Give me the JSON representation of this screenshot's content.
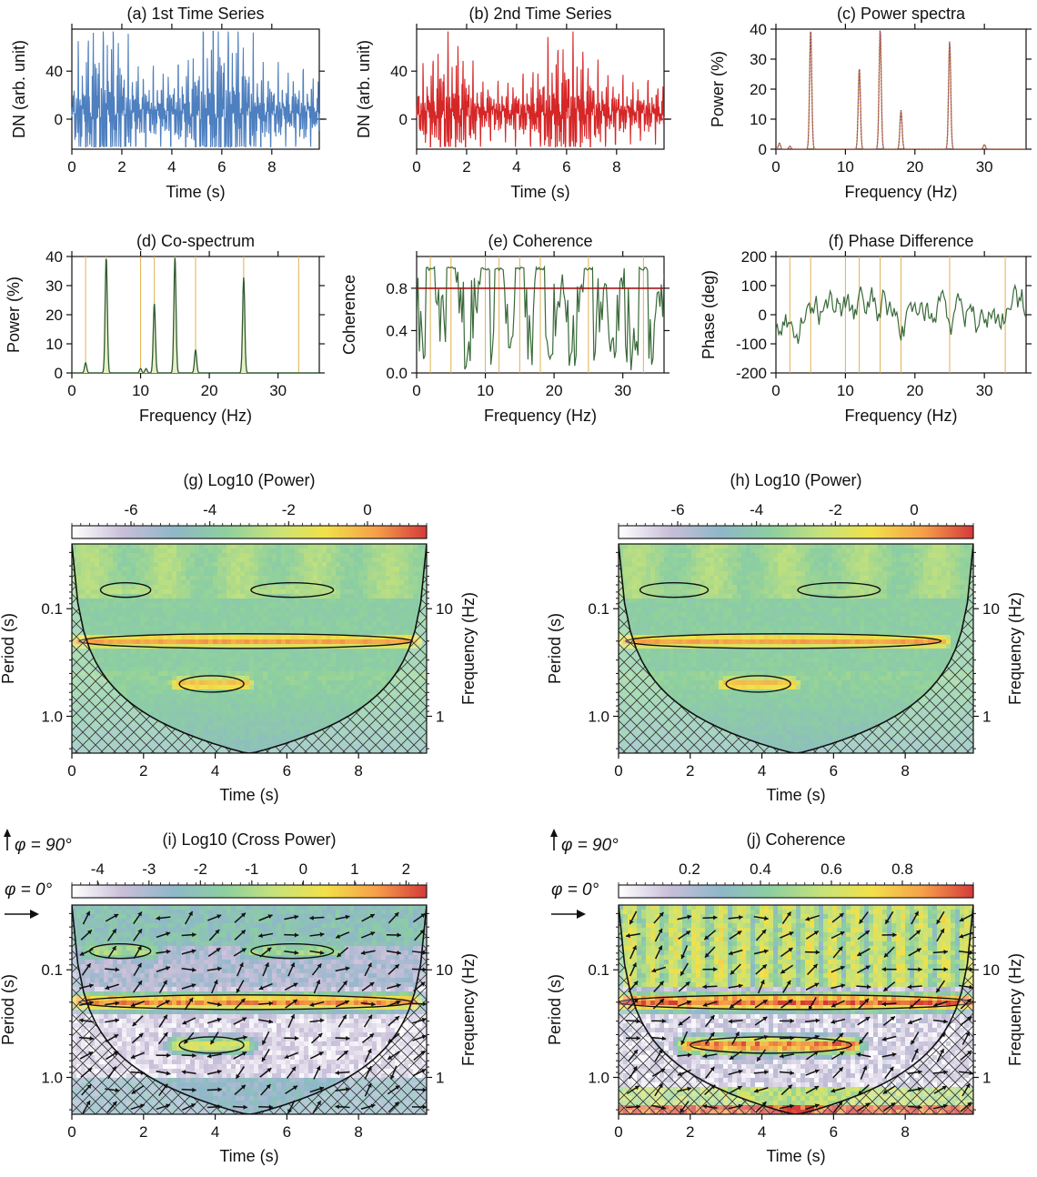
{
  "colors": {
    "series1": "#4e7fbf",
    "series2": "#d62728",
    "power1": "#8a4a8a",
    "power2": "#d08a2a",
    "cospec": "#2f5a2f",
    "cospec_fill": "#e8f0c8",
    "coherence_line": "#3a6a3a",
    "threshold": "#a01818",
    "marker": "#e0b050",
    "colormap": [
      "#ffffff",
      "#c9bfd9",
      "#8fb7c9",
      "#8ccfa0",
      "#c6e27a",
      "#f1e14a",
      "#f6a04a",
      "#d43a3a"
    ]
  },
  "chart_data": [
    {
      "id": "a",
      "type": "line",
      "title": "(a) 1st Time Series",
      "xlabel": "Time (s)",
      "ylabel": "DN (arb. unit)",
      "xlim": [
        0,
        9.9
      ],
      "ylim": [
        -25,
        75
      ],
      "xticks": [
        "0",
        "2",
        "4",
        "6",
        "8"
      ],
      "yticks": [
        "0",
        "40"
      ],
      "signal": {
        "components_hz": [
          5,
          12,
          15,
          18,
          25
        ],
        "duration_s": 9.9,
        "peak": 72
      }
    },
    {
      "id": "b",
      "type": "line",
      "title": "(b) 2nd Time Series",
      "xlabel": "Time (s)",
      "ylabel": "DN (arb. unit)",
      "xlim": [
        0,
        9.9
      ],
      "ylim": [
        -25,
        75
      ],
      "xticks": [
        "0",
        "2",
        "4",
        "6",
        "8"
      ],
      "yticks": [
        "0",
        "40"
      ],
      "signal": {
        "components_hz": [
          5,
          12,
          15,
          18,
          25
        ],
        "duration_s": 9.9,
        "peak": 52
      }
    },
    {
      "id": "c",
      "type": "line",
      "title": "(c) Power spectra",
      "xlabel": "Frequency (Hz)",
      "ylabel": "Power (%)",
      "xlim": [
        0,
        36
      ],
      "ylim": [
        0,
        40
      ],
      "xticks": [
        "0",
        "10",
        "20",
        "30"
      ],
      "yticks": [
        "0",
        "10",
        "20",
        "30",
        "40"
      ],
      "peaks": [
        {
          "x": 0.5,
          "y": 2
        },
        {
          "x": 2,
          "y": 1
        },
        {
          "x": 5,
          "y": 40
        },
        {
          "x": 12,
          "y": 27
        },
        {
          "x": 15,
          "y": 40
        },
        {
          "x": 18,
          "y": 13
        },
        {
          "x": 25,
          "y": 36
        },
        {
          "x": 30,
          "y": 1.5
        }
      ]
    },
    {
      "id": "d",
      "type": "area",
      "title": "(d) Co-spectrum",
      "xlabel": "Frequency (Hz)",
      "ylabel": "Power (%)",
      "xlim": [
        0,
        36
      ],
      "ylim": [
        0,
        40
      ],
      "xticks": [
        "0",
        "10",
        "20",
        "30"
      ],
      "yticks": [
        "0",
        "10",
        "20",
        "30",
        "40"
      ],
      "peaks": [
        {
          "x": 2,
          "y": 3.5
        },
        {
          "x": 5,
          "y": 40
        },
        {
          "x": 10,
          "y": 1.5
        },
        {
          "x": 10.8,
          "y": 1.5
        },
        {
          "x": 12,
          "y": 24
        },
        {
          "x": 15,
          "y": 40
        },
        {
          "x": 18,
          "y": 8
        },
        {
          "x": 25,
          "y": 33
        }
      ],
      "markers_hz": [
        2,
        5,
        10,
        12,
        15,
        18,
        25,
        33
      ]
    },
    {
      "id": "e",
      "type": "line",
      "title": "(e) Coherence",
      "xlabel": "Frequency (Hz)",
      "ylabel": "Coherence",
      "xlim": [
        0,
        36
      ],
      "ylim": [
        0,
        1.1
      ],
      "xticks": [
        "0",
        "10",
        "20",
        "30"
      ],
      "yticks": [
        "0.0",
        "0.4",
        "0.8"
      ],
      "threshold": 0.8,
      "markers_hz": [
        2,
        5,
        10,
        12,
        15,
        18,
        25,
        33
      ]
    },
    {
      "id": "f",
      "type": "line",
      "title": "(f) Phase Difference",
      "xlabel": "Frequency (Hz)",
      "ylabel": "Phase (deg)",
      "xlim": [
        0,
        36
      ],
      "ylim": [
        -200,
        200
      ],
      "xticks": [
        "0",
        "10",
        "20",
        "30"
      ],
      "yticks": [
        "-200",
        "-100",
        "0",
        "100",
        "200"
      ],
      "markers_hz": [
        2,
        5,
        10,
        12,
        15,
        18,
        25,
        33
      ]
    },
    {
      "id": "g",
      "type": "heatmap",
      "title": "(g) Log10 (Power)",
      "xlabel": "Time (s)",
      "ylabel": "Period (s)",
      "y2label": "Frequency (Hz)",
      "xlim": [
        0,
        9.9
      ],
      "period_range": [
        0.025,
        2.2
      ],
      "xticks": [
        "0",
        "2",
        "4",
        "6",
        "8"
      ],
      "yticks": [
        "0.1",
        "1.0"
      ],
      "y2ticks": [
        "10",
        "1"
      ],
      "colorbar": {
        "ticks": [
          "-6",
          "-4",
          "-2",
          "0"
        ],
        "range": [
          -7.5,
          1.5
        ]
      },
      "bands": [
        {
          "period": 0.2,
          "t0": 0.2,
          "t1": 9.5,
          "level": 0.85
        },
        {
          "period": 0.5,
          "t0": 3.0,
          "t1": 4.8,
          "level": 0.8
        },
        {
          "period": 0.067,
          "t0": 0.8,
          "t1": 2.2,
          "level": 0.55
        },
        {
          "period": 0.067,
          "t0": 5.0,
          "t1": 7.3,
          "level": 0.55
        }
      ]
    },
    {
      "id": "h",
      "type": "heatmap",
      "title": "(h) Log10 (Power)",
      "xlabel": "Time (s)",
      "ylabel": "Period (s)",
      "y2label": "Frequency (Hz)",
      "xlim": [
        0,
        9.9
      ],
      "period_range": [
        0.025,
        2.2
      ],
      "xticks": [
        "0",
        "2",
        "4",
        "6",
        "8"
      ],
      "yticks": [
        "0.1",
        "1.0"
      ],
      "y2ticks": [
        "10",
        "1"
      ],
      "colorbar": {
        "ticks": [
          "-6",
          "-4",
          "-2",
          "0"
        ],
        "range": [
          -7.5,
          1.5
        ]
      },
      "bands": [
        {
          "period": 0.2,
          "t0": 0.2,
          "t1": 9.0,
          "level": 0.85
        },
        {
          "period": 0.5,
          "t0": 3.0,
          "t1": 4.8,
          "level": 0.8
        },
        {
          "period": 0.067,
          "t0": 0.6,
          "t1": 2.5,
          "level": 0.5
        },
        {
          "period": 0.067,
          "t0": 5.0,
          "t1": 7.3,
          "level": 0.5
        }
      ]
    },
    {
      "id": "i",
      "type": "heatmap",
      "title": "(i) Log10 (Cross Power)",
      "xlabel": "Time (s)",
      "ylabel": "Period (s)",
      "y2label": "Frequency (Hz)",
      "xlim": [
        0,
        9.9
      ],
      "period_range": [
        0.025,
        2.2
      ],
      "xticks": [
        "0",
        "2",
        "4",
        "6",
        "8"
      ],
      "yticks": [
        "0.1",
        "1.0"
      ],
      "y2ticks": [
        "10",
        "1"
      ],
      "colorbar": {
        "ticks": [
          "-4",
          "-3",
          "-2",
          "-1",
          "0",
          "1",
          "2"
        ],
        "range": [
          -4.5,
          2.4
        ]
      },
      "phase_legend": {
        "up": "φ = 90°",
        "right": "φ = 0°"
      },
      "bands": [
        {
          "period": 0.2,
          "t0": 0.2,
          "t1": 9.5,
          "level": 0.88
        },
        {
          "period": 0.5,
          "t0": 3.0,
          "t1": 4.8,
          "level": 0.65
        },
        {
          "period": 0.067,
          "t0": 0.5,
          "t1": 2.2,
          "level": 0.5
        },
        {
          "period": 0.067,
          "t0": 5.0,
          "t1": 7.3,
          "level": 0.5
        }
      ]
    },
    {
      "id": "j",
      "type": "heatmap",
      "title": "(j) Coherence",
      "xlabel": "Time (s)",
      "ylabel": "Period (s)",
      "y2label": "Frequency (Hz)",
      "xlim": [
        0,
        9.9
      ],
      "period_range": [
        0.025,
        2.2
      ],
      "xticks": [
        "0",
        "2",
        "4",
        "6",
        "8"
      ],
      "yticks": [
        "0.1",
        "1.0"
      ],
      "y2ticks": [
        "10",
        "1"
      ],
      "colorbar": {
        "ticks": [
          "0.2",
          "0.4",
          "0.6",
          "0.8"
        ],
        "range": [
          0,
          1
        ]
      },
      "phase_legend": {
        "up": "φ = 90°",
        "right": "φ = 0°"
      },
      "bands": [
        {
          "period": 0.2,
          "t0": 0.0,
          "t1": 9.9,
          "level": 0.95
        },
        {
          "period": 0.5,
          "t0": 2.0,
          "t1": 6.5,
          "level": 0.9
        }
      ]
    }
  ]
}
